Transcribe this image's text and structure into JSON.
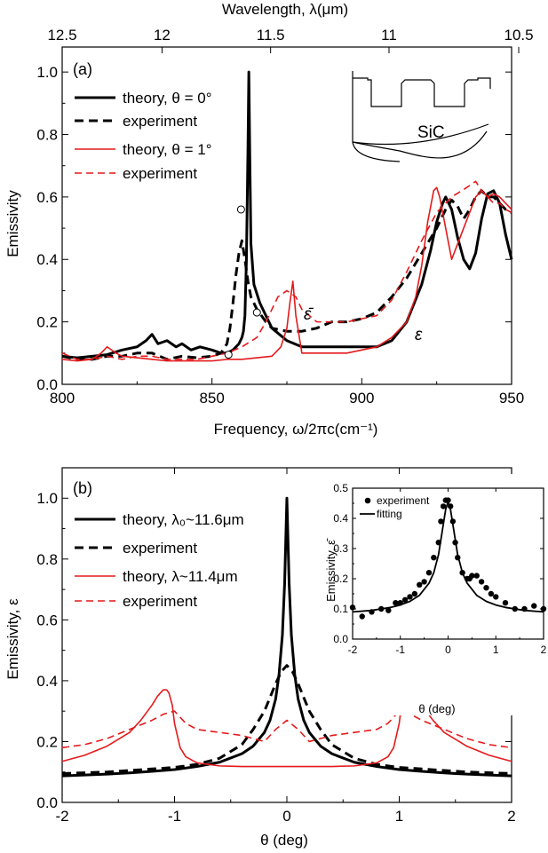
{
  "chart_data": [
    {
      "panel_label": "(a)",
      "type": "line",
      "xlabel": "Frequency, ω/2πc(cm⁻¹)",
      "ylabel": "Emissivity",
      "top_xlabel": "Wavelength, λ(μm)",
      "xlim": [
        800,
        950
      ],
      "ylim": [
        0.0,
        1.08
      ],
      "xticks": [
        800,
        850,
        900,
        950
      ],
      "xtick_labels": [
        "800",
        "850",
        "900",
        "950"
      ],
      "yticks": [
        0.0,
        0.2,
        0.4,
        0.6,
        0.8,
        1.0
      ],
      "ytick_labels": [
        "0.0",
        "0.2",
        "0.4",
        "0.6",
        "0.8",
        "1.0"
      ],
      "top_xtick_labels": [
        "12.5",
        "12",
        "11.5",
        "11",
        "10.5"
      ],
      "top_xtick_positions_um": [
        12.5,
        12.0,
        11.5,
        11.0,
        10.5
      ],
      "grid": false,
      "legend_placement": "top-left",
      "series": [
        {
          "name": "theory, θ = 0°",
          "color": "#000000",
          "dash": "solid",
          "x": [
            800,
            805,
            810,
            815,
            820,
            825,
            828,
            830,
            832,
            835,
            838,
            840,
            843,
            846,
            850,
            853,
            855,
            857,
            858,
            859,
            860,
            860.5,
            861,
            861.5,
            862,
            862.3,
            862.6,
            863,
            864,
            866,
            868,
            870,
            875,
            880,
            890,
            900,
            905,
            910,
            915,
            920,
            923,
            925,
            927,
            928,
            930,
            932,
            934,
            936,
            938,
            940,
            942,
            944,
            946,
            948,
            950
          ],
          "y": [
            0.09,
            0.085,
            0.09,
            0.095,
            0.11,
            0.12,
            0.14,
            0.16,
            0.13,
            0.14,
            0.12,
            0.13,
            0.11,
            0.12,
            0.11,
            0.1,
            0.1,
            0.11,
            0.12,
            0.13,
            0.15,
            0.17,
            0.22,
            0.4,
            0.75,
            1.0,
            0.75,
            0.45,
            0.32,
            0.26,
            0.22,
            0.18,
            0.14,
            0.12,
            0.12,
            0.12,
            0.12,
            0.14,
            0.2,
            0.32,
            0.43,
            0.52,
            0.58,
            0.6,
            0.56,
            0.47,
            0.4,
            0.37,
            0.42,
            0.53,
            0.61,
            0.62,
            0.58,
            0.48,
            0.4
          ]
        },
        {
          "name": "experiment",
          "color": "#000000",
          "dash": "dash",
          "x": [
            800,
            805,
            810,
            815,
            820,
            825,
            830,
            835,
            840,
            845,
            850,
            853,
            855,
            856,
            857,
            858,
            859,
            860,
            861,
            862,
            863,
            865,
            868,
            870,
            875,
            880,
            885,
            890,
            895,
            900,
            905,
            910,
            915,
            920,
            925,
            928,
            930,
            932,
            934,
            936,
            938,
            940,
            942,
            944,
            946,
            948,
            950
          ],
          "y": [
            0.09,
            0.08,
            0.08,
            0.09,
            0.09,
            0.1,
            0.1,
            0.08,
            0.09,
            0.085,
            0.09,
            0.1,
            0.13,
            0.18,
            0.26,
            0.35,
            0.42,
            0.46,
            0.4,
            0.33,
            0.28,
            0.24,
            0.2,
            0.18,
            0.17,
            0.17,
            0.18,
            0.2,
            0.2,
            0.21,
            0.23,
            0.28,
            0.34,
            0.42,
            0.5,
            0.56,
            0.59,
            0.57,
            0.53,
            0.56,
            0.6,
            0.62,
            0.6,
            0.6,
            0.58,
            0.56,
            0.55
          ]
        },
        {
          "name": "theory, θ = 1°",
          "color": "#e41a1c",
          "dash": "solid",
          "x": [
            800,
            805,
            810,
            813,
            815,
            818,
            820,
            825,
            830,
            835,
            840,
            845,
            850,
            855,
            860,
            865,
            870,
            873,
            875,
            876,
            877,
            878,
            880,
            885,
            890,
            895,
            900,
            905,
            910,
            915,
            918,
            920,
            922,
            924,
            925,
            926,
            928,
            930,
            932,
            934,
            936,
            938,
            940,
            942,
            944,
            946,
            948,
            950
          ],
          "y": [
            0.08,
            0.075,
            0.08,
            0.1,
            0.12,
            0.1,
            0.09,
            0.085,
            0.08,
            0.075,
            0.075,
            0.075,
            0.075,
            0.08,
            0.08,
            0.085,
            0.09,
            0.12,
            0.18,
            0.26,
            0.33,
            0.22,
            0.1,
            0.1,
            0.1,
            0.1,
            0.11,
            0.12,
            0.15,
            0.2,
            0.28,
            0.38,
            0.52,
            0.62,
            0.63,
            0.6,
            0.5,
            0.4,
            0.45,
            0.5,
            0.55,
            0.6,
            0.62,
            0.6,
            0.61,
            0.6,
            0.58,
            0.56
          ]
        },
        {
          "name": "experiment",
          "color": "#e41a1c",
          "dash": "dash",
          "x": [
            800,
            805,
            810,
            815,
            820,
            825,
            830,
            835,
            840,
            845,
            850,
            855,
            860,
            865,
            868,
            870,
            872,
            875,
            878,
            880,
            885,
            890,
            895,
            900,
            905,
            910,
            915,
            920,
            925,
            930,
            935,
            938,
            940,
            942,
            944,
            946,
            948,
            950
          ],
          "y": [
            0.1,
            0.08,
            0.08,
            0.09,
            0.08,
            0.09,
            0.09,
            0.08,
            0.08,
            0.08,
            0.09,
            0.1,
            0.12,
            0.15,
            0.2,
            0.24,
            0.28,
            0.3,
            0.28,
            0.24,
            0.2,
            0.2,
            0.2,
            0.21,
            0.22,
            0.27,
            0.36,
            0.46,
            0.55,
            0.6,
            0.63,
            0.65,
            0.62,
            0.6,
            0.58,
            0.58,
            0.56,
            0.55
          ]
        }
      ],
      "markers": {
        "x": [
          855.5,
          859.7,
          865.0
        ],
        "y": [
          0.095,
          0.56,
          0.23
        ],
        "style": "open-circle"
      },
      "annotations": [
        {
          "text": "ε̄",
          "x": 890,
          "y": 0.24
        },
        {
          "text": "ε",
          "x": 918,
          "y": 0.19
        }
      ],
      "inset_label": "SiC"
    },
    {
      "panel_label": "(b)",
      "type": "line",
      "xlabel": "θ (deg)",
      "ylabel": "Emissivity, ε",
      "xlim": [
        -2,
        2
      ],
      "ylim": [
        0.0,
        1.1
      ],
      "xticks": [
        -2,
        -1,
        0,
        1,
        2
      ],
      "xtick_labels": [
        "-2",
        "-1",
        "0",
        "1",
        "2"
      ],
      "yticks": [
        0.0,
        0.2,
        0.4,
        0.6,
        0.8,
        1.0
      ],
      "ytick_labels": [
        "0.0",
        "0.2",
        "0.4",
        "0.6",
        "0.8",
        "1.0"
      ],
      "grid": false,
      "legend_placement": "top-left",
      "series": [
        {
          "name": "theory, λ₀~11.6μm",
          "color": "#000000",
          "dash": "solid",
          "x": [
            -2,
            -1.8,
            -1.6,
            -1.4,
            -1.2,
            -1.0,
            -0.8,
            -0.6,
            -0.4,
            -0.3,
            -0.2,
            -0.15,
            -0.1,
            -0.07,
            -0.04,
            -0.02,
            0,
            0.02,
            0.04,
            0.07,
            0.1,
            0.15,
            0.2,
            0.3,
            0.4,
            0.6,
            0.8,
            1.0,
            1.2,
            1.4,
            1.6,
            1.8,
            2
          ],
          "y": [
            0.087,
            0.09,
            0.093,
            0.097,
            0.102,
            0.108,
            0.118,
            0.132,
            0.16,
            0.185,
            0.23,
            0.27,
            0.34,
            0.42,
            0.55,
            0.72,
            1.0,
            0.72,
            0.55,
            0.42,
            0.34,
            0.27,
            0.23,
            0.185,
            0.16,
            0.132,
            0.118,
            0.108,
            0.102,
            0.097,
            0.093,
            0.09,
            0.087
          ]
        },
        {
          "name": "experiment",
          "color": "#000000",
          "dash": "dash",
          "x": [
            -2,
            -1.6,
            -1.2,
            -1.0,
            -0.8,
            -0.6,
            -0.4,
            -0.3,
            -0.2,
            -0.1,
            -0.05,
            0,
            0.05,
            0.1,
            0.2,
            0.3,
            0.4,
            0.6,
            0.8,
            1.0,
            1.2,
            1.6,
            2
          ],
          "y": [
            0.095,
            0.1,
            0.11,
            0.115,
            0.125,
            0.145,
            0.19,
            0.24,
            0.3,
            0.39,
            0.43,
            0.45,
            0.43,
            0.39,
            0.3,
            0.24,
            0.19,
            0.145,
            0.125,
            0.115,
            0.11,
            0.1,
            0.095
          ]
        },
        {
          "name": "theory, λ~11.4μm",
          "color": "#e41a1c",
          "dash": "solid",
          "x": [
            -2,
            -1.8,
            -1.6,
            -1.4,
            -1.3,
            -1.2,
            -1.15,
            -1.1,
            -1.07,
            -1.05,
            -1.02,
            -1.0,
            -0.95,
            -0.9,
            -0.8,
            -0.6,
            -0.4,
            -0.2,
            0,
            0.2,
            0.4,
            0.6,
            0.8,
            0.9,
            0.95,
            1.0,
            1.02,
            1.05,
            1.07,
            1.1,
            1.15,
            1.2,
            1.3,
            1.4,
            1.6,
            1.8,
            2
          ],
          "y": [
            0.135,
            0.155,
            0.185,
            0.23,
            0.27,
            0.32,
            0.35,
            0.37,
            0.37,
            0.36,
            0.32,
            0.26,
            0.18,
            0.15,
            0.13,
            0.12,
            0.118,
            0.118,
            0.118,
            0.118,
            0.118,
            0.12,
            0.13,
            0.15,
            0.18,
            0.26,
            0.32,
            0.36,
            0.37,
            0.37,
            0.35,
            0.32,
            0.27,
            0.23,
            0.185,
            0.155,
            0.135
          ]
        },
        {
          "name": "experiment",
          "color": "#e41a1c",
          "dash": "dash",
          "x": [
            -2,
            -1.8,
            -1.6,
            -1.4,
            -1.2,
            -1.1,
            -1.0,
            -0.9,
            -0.8,
            -0.6,
            -0.4,
            -0.2,
            -0.1,
            0,
            0.1,
            0.2,
            0.4,
            0.6,
            0.8,
            0.9,
            1.0,
            1.1,
            1.2,
            1.4,
            1.6,
            1.8,
            2
          ],
          "y": [
            0.18,
            0.19,
            0.21,
            0.24,
            0.27,
            0.29,
            0.3,
            0.26,
            0.24,
            0.23,
            0.22,
            0.2,
            0.24,
            0.27,
            0.24,
            0.2,
            0.22,
            0.23,
            0.24,
            0.26,
            0.3,
            0.29,
            0.27,
            0.24,
            0.21,
            0.19,
            0.18
          ]
        }
      ]
    },
    {
      "panel_label": "",
      "type": "scatter",
      "xlabel": "θ (deg)",
      "ylabel": "Emissivity, ε̄",
      "xlim": [
        -2,
        2
      ],
      "ylim": [
        0.0,
        0.5
      ],
      "xticks": [
        -2,
        -1,
        0,
        1,
        2
      ],
      "xtick_labels": [
        "-2",
        "-1",
        "0",
        "1",
        "2"
      ],
      "yticks": [
        0.0,
        0.1,
        0.2,
        0.3,
        0.4,
        0.5
      ],
      "ytick_labels": [
        "0.0",
        "0.1",
        "0.2",
        "0.3",
        "0.4",
        "0.5"
      ],
      "grid": false,
      "legend_placement": "top-left",
      "series": [
        {
          "name": "experiment",
          "color": "#000000",
          "style": "filled-circle",
          "x": [
            -2.0,
            -1.8,
            -1.6,
            -1.4,
            -1.25,
            -1.1,
            -1.0,
            -0.9,
            -0.8,
            -0.7,
            -0.6,
            -0.5,
            -0.4,
            -0.3,
            -0.2,
            -0.15,
            -0.1,
            -0.05,
            0.0,
            0.05,
            0.1,
            0.15,
            0.2,
            0.3,
            0.4,
            0.45,
            0.5,
            0.6,
            0.7,
            0.8,
            0.9,
            1.0,
            1.2,
            1.4,
            1.6,
            1.8,
            2.0
          ],
          "y": [
            0.105,
            0.075,
            0.09,
            0.1,
            0.095,
            0.12,
            0.12,
            0.13,
            0.14,
            0.15,
            0.18,
            0.19,
            0.22,
            0.27,
            0.32,
            0.39,
            0.44,
            0.46,
            0.46,
            0.44,
            0.39,
            0.32,
            0.27,
            0.22,
            0.2,
            0.2,
            0.21,
            0.21,
            0.19,
            0.17,
            0.15,
            0.14,
            0.12,
            0.1,
            0.1,
            0.11,
            0.1
          ]
        },
        {
          "name": "fitting",
          "color": "#000000",
          "style": "line",
          "x": [
            -2,
            -1.6,
            -1.2,
            -1.0,
            -0.8,
            -0.6,
            -0.4,
            -0.3,
            -0.2,
            -0.1,
            -0.05,
            0,
            0.05,
            0.1,
            0.2,
            0.3,
            0.4,
            0.6,
            0.8,
            1.0,
            1.2,
            1.6,
            2
          ],
          "y": [
            0.09,
            0.095,
            0.105,
            0.113,
            0.125,
            0.145,
            0.185,
            0.22,
            0.28,
            0.38,
            0.43,
            0.455,
            0.43,
            0.38,
            0.28,
            0.22,
            0.185,
            0.145,
            0.125,
            0.113,
            0.105,
            0.095,
            0.09
          ]
        }
      ]
    }
  ]
}
